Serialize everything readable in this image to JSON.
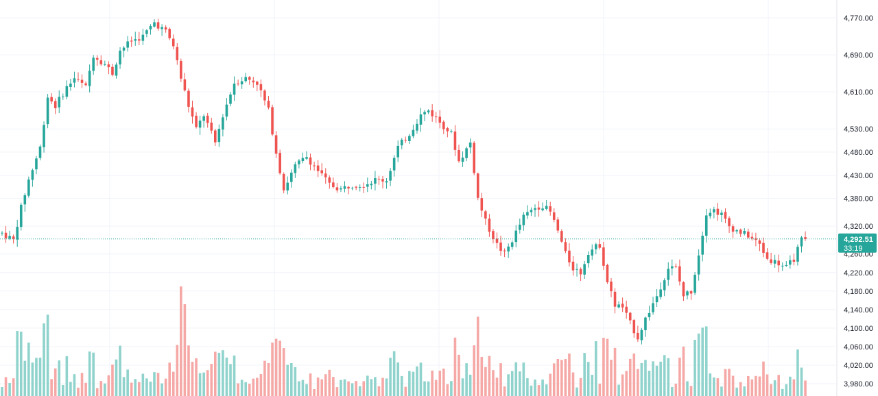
{
  "chart_data": {
    "type": "candlestick",
    "title": "",
    "ylim": [
      3960,
      4800
    ],
    "y_axis": {
      "position": "right",
      "ticks": [
        "4,770.00",
        "4,690.00",
        "4,610.00",
        "4,530.00",
        "4,480.00",
        "4,430.00",
        "4,380.00",
        "4,320.00",
        "4,260.00",
        "4,220.00",
        "4,180.00",
        "4,140.00",
        "4,100.00",
        "4,060.00",
        "4,020.00",
        "3,980.00"
      ],
      "tick_values": [
        4770,
        4690,
        4610,
        4530,
        4480,
        4430,
        4380,
        4320,
        4260,
        4220,
        4180,
        4140,
        4100,
        4060,
        4020,
        3980
      ]
    },
    "grid": true,
    "current_price": 4292.51,
    "current_price_label": "4,292.51",
    "countdown": "33:19",
    "colors": {
      "up": "#26a69a",
      "down": "#ef5350",
      "up_volume": "#8fd3cc",
      "down_volume": "#f5a8a6",
      "grid": "#f0f3fa",
      "price_line": "#26a69a",
      "tag_bg": "#26a69a"
    },
    "candle_count": 212,
    "waypoints": [
      [
        0,
        4305
      ],
      [
        3,
        4290
      ],
      [
        5,
        4360
      ],
      [
        7,
        4420
      ],
      [
        10,
        4490
      ],
      [
        12,
        4600
      ],
      [
        14,
        4580
      ],
      [
        17,
        4620
      ],
      [
        19,
        4640
      ],
      [
        22,
        4620
      ],
      [
        24,
        4690
      ],
      [
        27,
        4670
      ],
      [
        29,
        4650
      ],
      [
        31,
        4700
      ],
      [
        34,
        4720
      ],
      [
        37,
        4730
      ],
      [
        40,
        4760
      ],
      [
        43,
        4740
      ],
      [
        45,
        4710
      ],
      [
        47,
        4640
      ],
      [
        49,
        4580
      ],
      [
        51,
        4530
      ],
      [
        53,
        4560
      ],
      [
        56,
        4500
      ],
      [
        58,
        4560
      ],
      [
        61,
        4630
      ],
      [
        64,
        4640
      ],
      [
        67,
        4630
      ],
      [
        70,
        4570
      ],
      [
        72,
        4480
      ],
      [
        74,
        4400
      ],
      [
        77,
        4450
      ],
      [
        80,
        4470
      ],
      [
        83,
        4440
      ],
      [
        86,
        4410
      ],
      [
        89,
        4400
      ],
      [
        92,
        4410
      ],
      [
        95,
        4410
      ],
      [
        98,
        4420
      ],
      [
        101,
        4420
      ],
      [
        104,
        4490
      ],
      [
        107,
        4520
      ],
      [
        110,
        4560
      ],
      [
        112,
        4570
      ],
      [
        115,
        4545
      ],
      [
        118,
        4520
      ],
      [
        120,
        4460
      ],
      [
        123,
        4500
      ],
      [
        124,
        4440
      ],
      [
        125,
        4380
      ],
      [
        127,
        4330
      ],
      [
        130,
        4280
      ],
      [
        132,
        4260
      ],
      [
        134,
        4290
      ],
      [
        137,
        4340
      ],
      [
        140,
        4360
      ],
      [
        142,
        4365
      ],
      [
        144,
        4350
      ],
      [
        146,
        4310
      ],
      [
        148,
        4260
      ],
      [
        150,
        4230
      ],
      [
        152,
        4220
      ],
      [
        154,
        4265
      ],
      [
        157,
        4280
      ],
      [
        159,
        4200
      ],
      [
        161,
        4150
      ],
      [
        163,
        4145
      ],
      [
        165,
        4110
      ],
      [
        167,
        4080
      ],
      [
        169,
        4120
      ],
      [
        172,
        4170
      ],
      [
        175,
        4230
      ],
      [
        177,
        4230
      ],
      [
        179,
        4170
      ],
      [
        181,
        4180
      ],
      [
        183,
        4260
      ],
      [
        185,
        4350
      ],
      [
        187,
        4355
      ],
      [
        189,
        4345
      ],
      [
        191,
        4320
      ],
      [
        193,
        4310
      ],
      [
        196,
        4300
      ],
      [
        199,
        4280
      ],
      [
        201,
        4250
      ],
      [
        204,
        4240
      ],
      [
        206,
        4230
      ],
      [
        208,
        4250
      ],
      [
        210,
        4290
      ],
      [
        211,
        4292.51
      ]
    ]
  }
}
